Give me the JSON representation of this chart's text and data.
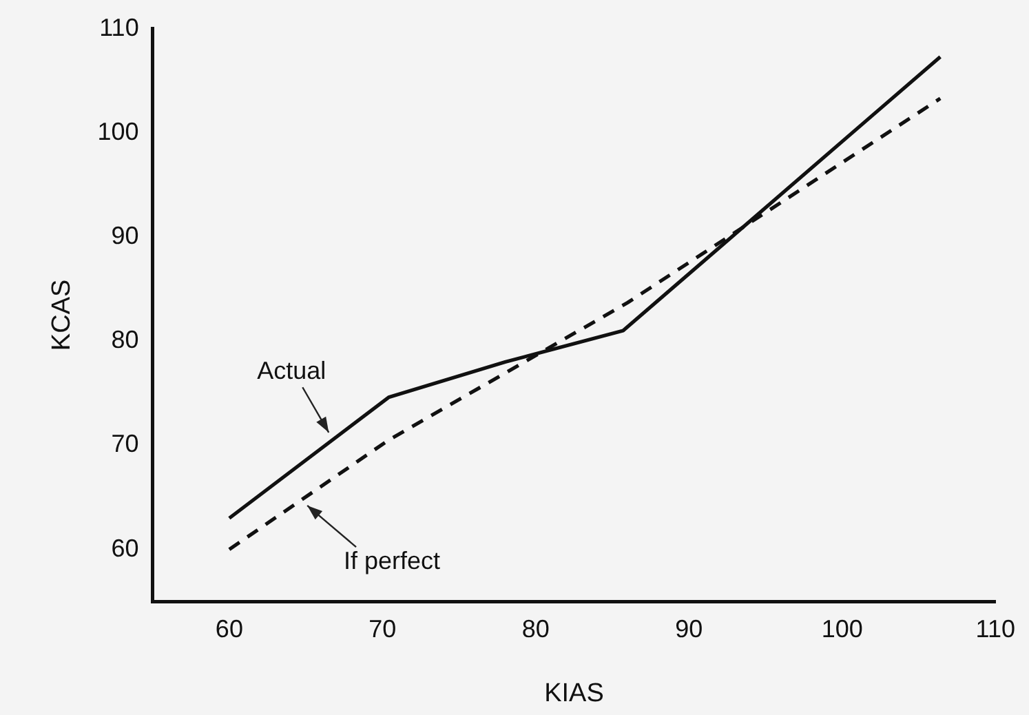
{
  "chart_data": {
    "type": "line",
    "xlabel": "KIAS",
    "ylabel": "KCAS",
    "xlim": [
      55,
      110
    ],
    "xticks": [
      60,
      70,
      80,
      90,
      100,
      110
    ],
    "ylim": [
      55,
      110
    ],
    "yticks": [
      60,
      70,
      80,
      90,
      100,
      110
    ],
    "grid": false,
    "legend": false,
    "marker": "none",
    "series": [
      {
        "name": "Actual",
        "color": "#111111",
        "line_style": "solid",
        "x": [
          60,
          70.4,
          78,
          85.7,
          106.4
        ],
        "values": [
          63,
          74.6,
          78,
          81,
          107.3
        ]
      },
      {
        "name": "If perfect",
        "color": "#111111",
        "line_style": "dashed",
        "x": [
          60,
          70.4,
          86,
          106.4
        ],
        "values": [
          60,
          70.5,
          83.7,
          103.3
        ]
      }
    ]
  }
}
